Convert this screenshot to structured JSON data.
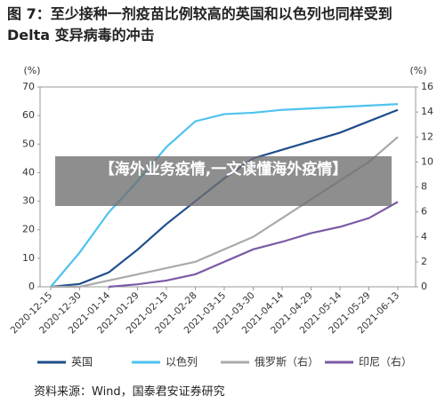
{
  "chart_data": {
    "type": "line",
    "title": "图 7：至少接种一剂疫苗比例较高的英国和以色列也同样受到 Delta 变异病毒的冲击",
    "y_unit": "(%)",
    "y2_unit": "(%)",
    "categories": [
      "2020-12-15",
      "2020-12-30",
      "2021-01-14",
      "2021-01-29",
      "2021-02-13",
      "2021-02-28",
      "2021-03-15",
      "2021-03-30",
      "2021-04-14",
      "2021-04-29",
      "2021-05-14",
      "2021-05-29",
      "2021-06-13"
    ],
    "series": [
      {
        "name": "英国",
        "color": "#1f4e8c",
        "values": [
          0,
          1,
          5,
          13,
          22,
          30,
          38,
          45,
          48,
          51,
          54,
          58,
          62
        ]
      },
      {
        "name": "以色列",
        "color": "#4ec3ef",
        "values": [
          0,
          12,
          26,
          37,
          49,
          58,
          60.5,
          61,
          62,
          62.5,
          63,
          63.5,
          64
        ]
      },
      {
        "name": "俄罗斯（右）",
        "color": "#aaaaaa",
        "axis": "y2",
        "values": [
          0,
          0,
          0.5,
          1,
          1.5,
          2,
          3,
          4,
          5.5,
          7,
          8.5,
          10,
          12
        ]
      },
      {
        "name": "印尼（右）",
        "color": "#7b5aa6",
        "axis": "y2",
        "values": [
          null,
          null,
          0,
          0.2,
          0.5,
          1,
          2,
          3,
          3.6,
          4.3,
          4.8,
          5.5,
          6.8
        ]
      }
    ],
    "ylim": [
      0,
      70
    ],
    "yticks": [
      0,
      10,
      20,
      30,
      40,
      50,
      60,
      70
    ],
    "y2lim": [
      0,
      16
    ],
    "y2ticks": [
      0,
      2,
      4,
      6,
      8,
      10,
      12,
      14,
      16
    ],
    "overlay": "【海外业务疫情,一文读懂海外疫情】",
    "source": "资料来源：Wind，国泰君安证券研究"
  }
}
